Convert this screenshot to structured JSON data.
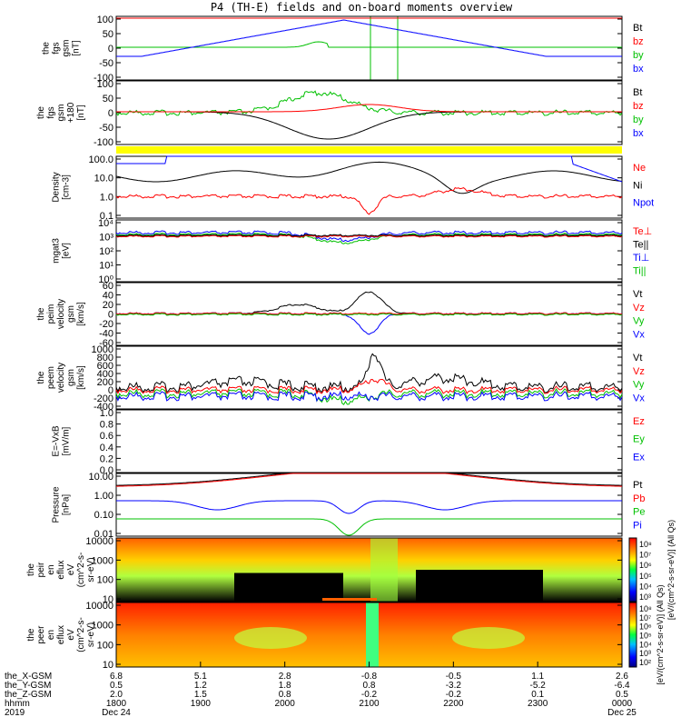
{
  "title": "P4 (TH-E) fields and on-board moments overview",
  "panels": [
    {
      "ylabel": [
        "the",
        "fgs",
        "gsm",
        "[nT]"
      ],
      "ticks": [
        "100",
        "50",
        "0",
        "-50",
        "-100"
      ],
      "legend": [
        {
          "t": "Bt",
          "c": "#000000"
        },
        {
          "t": "bz",
          "c": "#ff0000"
        },
        {
          "t": "by",
          "c": "#00c000"
        },
        {
          "t": "bx",
          "c": "#0000ff"
        }
      ]
    },
    {
      "ylabel": [
        "the",
        "fgs",
        "gsm",
        "+180",
        "[nT]"
      ],
      "ticks": [
        "100",
        "50",
        "0",
        "-50",
        "-100"
      ],
      "legend": [
        {
          "t": "Bt",
          "c": "#000000"
        },
        {
          "t": "bz",
          "c": "#ff0000"
        },
        {
          "t": "by",
          "c": "#00c000"
        },
        {
          "t": "bx",
          "c": "#0000ff"
        }
      ]
    },
    {
      "ylabel": [
        "Density",
        "[cm-3]"
      ],
      "ticks": [
        "100.0",
        "10.0",
        "1.0",
        "0.1"
      ],
      "legend": [
        {
          "t": "Ne",
          "c": "#ff0000"
        },
        {
          "t": "Ni",
          "c": "#000000"
        },
        {
          "t": "Npot",
          "c": "#0000ff"
        }
      ]
    },
    {
      "ylabel": [
        "mgat3",
        "[eV]"
      ],
      "ticks": [
        "10⁴",
        "10³",
        "10²",
        "10¹",
        "10⁰"
      ],
      "legend": [
        {
          "t": "Te⊥",
          "c": "#ff0000"
        },
        {
          "t": "Te||",
          "c": "#000000"
        },
        {
          "t": "Ti⊥",
          "c": "#0000ff"
        },
        {
          "t": "Ti||",
          "c": "#00c000"
        }
      ]
    },
    {
      "ylabel": [
        "the",
        "peim",
        "velocity",
        "gsm",
        "[km/s]"
      ],
      "ticks": [
        "60",
        "40",
        "20",
        "0",
        "-20",
        "-40",
        "-60"
      ],
      "legend": [
        {
          "t": "Vt",
          "c": "#000000"
        },
        {
          "t": "Vz",
          "c": "#ff0000"
        },
        {
          "t": "Vy",
          "c": "#00c000"
        },
        {
          "t": "Vx",
          "c": "#0000ff"
        }
      ]
    },
    {
      "ylabel": [
        "the",
        "peem",
        "velocity",
        "gsm",
        "[km/s]"
      ],
      "ticks": [
        "1000",
        "800",
        "600",
        "400",
        "200",
        "0",
        "-200",
        "-400"
      ],
      "legend": [
        {
          "t": "Vt",
          "c": "#000000"
        },
        {
          "t": "Vz",
          "c": "#ff0000"
        },
        {
          "t": "Vy",
          "c": "#00c000"
        },
        {
          "t": "Vx",
          "c": "#0000ff"
        }
      ]
    },
    {
      "ylabel": [
        "E=-VxB",
        "[mV/m]"
      ],
      "ticks": [
        "1.0",
        "0.8",
        "0.6",
        "0.4",
        "0.2",
        "0.0"
      ],
      "legend": [
        {
          "t": "Ez",
          "c": "#ff0000"
        },
        {
          "t": "Ey",
          "c": "#00c000"
        },
        {
          "t": "Ex",
          "c": "#0000ff"
        }
      ]
    },
    {
      "ylabel": [
        "Pressure",
        "[nPa]"
      ],
      "ticks": [
        "10.00",
        "1.00",
        "0.10",
        "0.01"
      ],
      "legend": [
        {
          "t": "Pt",
          "c": "#000000"
        },
        {
          "t": "Pb",
          "c": "#ff0000"
        },
        {
          "t": "Pe",
          "c": "#00c000"
        },
        {
          "t": "Pi",
          "c": "#0000ff"
        }
      ]
    },
    {
      "ylabel": [
        "the",
        "peir",
        "en",
        "eflux",
        "eV",
        "(cm^2-s-",
        "sr-eV)"
      ],
      "ticks": [
        "10000",
        "1000",
        "100",
        "10"
      ],
      "legend": []
    },
    {
      "ylabel": [
        "the",
        "peer",
        "en",
        "eflux",
        "eV",
        "(cm^2-s-",
        "sr-eV)"
      ],
      "ticks": [
        "10000",
        "1000",
        "100",
        "10"
      ],
      "legend": []
    }
  ],
  "colorbars": [
    {
      "ticks": [
        "10⁸",
        "10⁷",
        "10⁶",
        "10⁵",
        "10⁴",
        "10³"
      ],
      "label": "[eV/(cm^2-s-sr-eV)] (All Qs)"
    },
    {
      "ticks": [
        "10⁸",
        "10⁷",
        "10⁶",
        "10⁵",
        "10⁴",
        "10³",
        "10²"
      ],
      "label": "[eV/(cm^2-s-sr-eV)] (All Qs)"
    }
  ],
  "xaxis": {
    "rows": [
      {
        "label": "the_X-GSM",
        "values": [
          "6.8",
          "5.1",
          "2.8",
          "-0.8",
          "-0.5",
          "1.1",
          "2.6"
        ]
      },
      {
        "label": "the_Y-GSM",
        "values": [
          "0.5",
          "1.2",
          "1.8",
          "0.8",
          "-3.2",
          "-5.2",
          "-6.4"
        ]
      },
      {
        "label": "the_Z-GSM",
        "values": [
          "2.0",
          "1.5",
          "0.8",
          "-0.2",
          "-0.2",
          "0.1",
          "0.5"
        ]
      },
      {
        "label": "hhmm",
        "values": [
          "1800",
          "1900",
          "2000",
          "2100",
          "2200",
          "2300",
          "0000"
        ]
      },
      {
        "label": "2019",
        "values": [
          "Dec 24",
          "",
          "",
          "",
          "",
          "",
          "Dec 25"
        ]
      }
    ]
  },
  "chart_data": {
    "type": "line",
    "title": "P4 (TH-E) fields and on-board moments overview",
    "x": [
      "1800",
      "1900",
      "2000",
      "2100",
      "2200",
      "2300",
      "0000"
    ],
    "xlabel": "hhmm",
    "series": [
      {
        "name": "Pi",
        "panel": "Pressure",
        "values": [
          0.9,
          0.15,
          0.4,
          0.08,
          0.06,
          0.2,
          0.3
        ]
      },
      {
        "name": "Pe",
        "panel": "Pressure",
        "values": [
          0.06,
          0.04,
          0.05,
          0.02,
          0.02,
          0.03,
          0.04
        ]
      },
      {
        "name": "Ni",
        "panel": "Density",
        "values": [
          20,
          8,
          12,
          150,
          3,
          15,
          5
        ]
      },
      {
        "name": "Ne",
        "panel": "Density",
        "values": [
          0.5,
          0.8,
          1.5,
          0.15,
          3,
          1.5,
          1
        ]
      }
    ]
  }
}
